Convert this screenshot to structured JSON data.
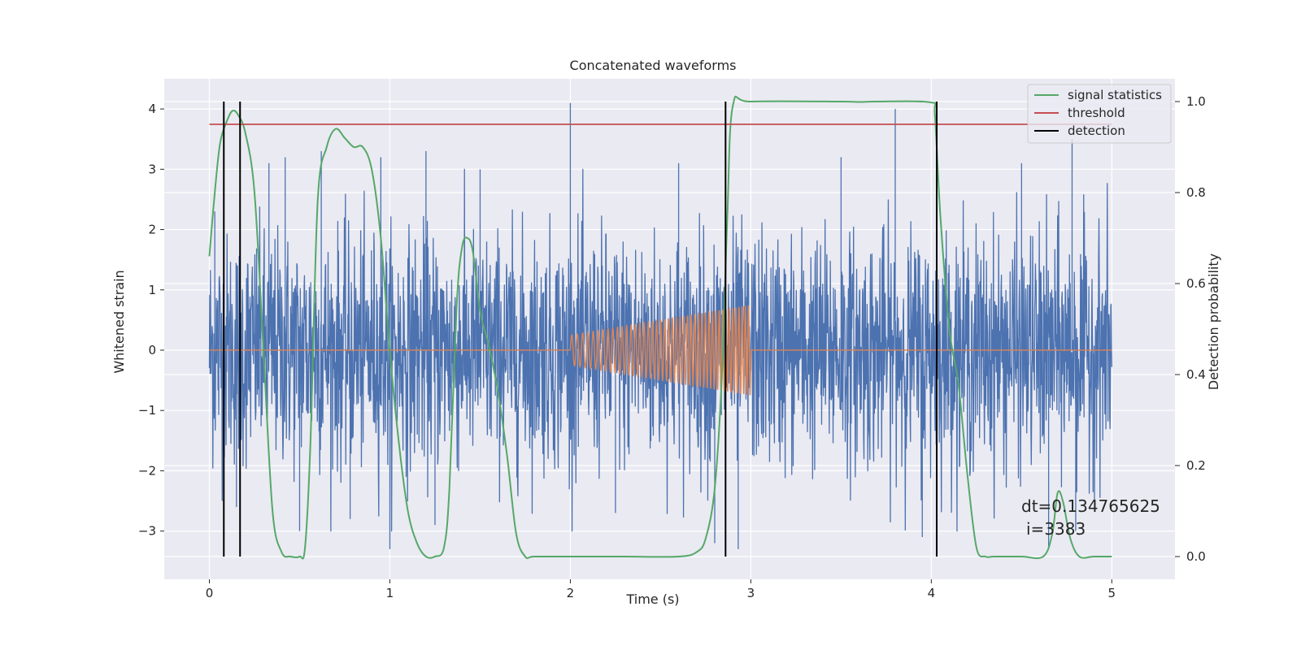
{
  "chart_data": {
    "type": "line",
    "title": "Concatenated waveforms",
    "xlabel": "Time (s)",
    "ylabel": "Whitened strain",
    "y2label": "Detection probability",
    "xlim": [
      -0.25,
      5.35
    ],
    "ylim": [
      -3.8,
      4.5
    ],
    "y2lim": [
      -0.05,
      1.05
    ],
    "x_ticks": [
      0,
      1,
      2,
      3,
      4,
      5
    ],
    "x_tick_labels": [
      "0",
      "1",
      "2",
      "3",
      "4",
      "5"
    ],
    "y_ticks": [
      -3,
      -2,
      -1,
      0,
      1,
      2,
      3,
      4
    ],
    "y_tick_labels": [
      "−3",
      "−2",
      "−1",
      "0",
      "1",
      "2",
      "3",
      "4"
    ],
    "y2_ticks": [
      0.0,
      0.2,
      0.4,
      0.6,
      0.8,
      1.0
    ],
    "y2_tick_labels": [
      "0.0",
      "0.2",
      "0.4",
      "0.6",
      "0.8",
      "1.0"
    ],
    "grid": true,
    "legend_position": "top-right",
    "legend": [
      "signal statistics",
      "threshold",
      "detection"
    ],
    "series": [
      {
        "name": "whitened strain",
        "axis": "left",
        "color": "#4c72b0",
        "kind": "noise",
        "x_range": [
          0,
          5
        ],
        "sigma": 1.0,
        "typical_envelope": [
          -2.0,
          2.0
        ],
        "spikes": [
          {
            "x": 0.03,
            "y": 2.3
          },
          {
            "x": 0.15,
            "y": -2.6
          },
          {
            "x": 0.33,
            "y": 3.1
          },
          {
            "x": 0.42,
            "y": 3.2
          },
          {
            "x": 0.5,
            "y": -3.0
          },
          {
            "x": 0.62,
            "y": 3.3
          },
          {
            "x": 0.78,
            "y": -2.8
          },
          {
            "x": 0.95,
            "y": 3.2
          },
          {
            "x": 1.0,
            "y": -3.3
          },
          {
            "x": 1.2,
            "y": 3.3
          },
          {
            "x": 1.25,
            "y": -2.9
          },
          {
            "x": 1.5,
            "y": 3.0
          },
          {
            "x": 2.0,
            "y": 4.1
          },
          {
            "x": 2.25,
            "y": -2.7
          },
          {
            "x": 2.6,
            "y": 3.1
          },
          {
            "x": 2.8,
            "y": -3.2
          },
          {
            "x": 2.93,
            "y": -3.3
          },
          {
            "x": 3.5,
            "y": 3.2
          },
          {
            "x": 3.8,
            "y": 4.0
          },
          {
            "x": 3.95,
            "y": -3.1
          },
          {
            "x": 4.5,
            "y": 3.1
          },
          {
            "x": 4.65,
            "y": -3.3
          },
          {
            "x": 4.78,
            "y": 3.5
          },
          {
            "x": 4.8,
            "y": -3.0
          }
        ]
      },
      {
        "name": "injected signal",
        "axis": "left",
        "color": "#dd8452",
        "kind": "chirp",
        "x_range": [
          0,
          5
        ],
        "chirp_start": 2.0,
        "chirp_end": 3.0,
        "amp_start": 0.25,
        "amp_end": 0.75,
        "freq_start": 32,
        "freq_end": 58
      },
      {
        "name": "signal statistics",
        "axis": "right",
        "color": "#55a868",
        "x": [
          0.0,
          0.03,
          0.06,
          0.1,
          0.13,
          0.16,
          0.2,
          0.25,
          0.3,
          0.35,
          0.4,
          0.45,
          0.5,
          0.53,
          0.56,
          0.6,
          0.65,
          0.7,
          0.75,
          0.8,
          0.85,
          0.9,
          0.95,
          1.0,
          1.05,
          1.1,
          1.15,
          1.2,
          1.25,
          1.3,
          1.33,
          1.37,
          1.4,
          1.43,
          1.46,
          1.5,
          1.55,
          1.6,
          1.65,
          1.7,
          1.75,
          1.8,
          2.0,
          2.3,
          2.6,
          2.7,
          2.75,
          2.8,
          2.84,
          2.87,
          2.9,
          3.0,
          3.5,
          3.6,
          3.7,
          4.0,
          4.02,
          4.05,
          4.1,
          4.15,
          4.2,
          4.25,
          4.3,
          4.35,
          4.5,
          4.62,
          4.67,
          4.7,
          4.73,
          4.77,
          4.82,
          4.9,
          5.0
        ],
        "values": [
          0.66,
          0.8,
          0.91,
          0.96,
          0.98,
          0.97,
          0.93,
          0.8,
          0.45,
          0.1,
          0.01,
          0.0,
          0.0,
          0.02,
          0.25,
          0.78,
          0.9,
          0.94,
          0.92,
          0.9,
          0.9,
          0.85,
          0.7,
          0.45,
          0.25,
          0.1,
          0.03,
          0.0,
          0.0,
          0.02,
          0.15,
          0.55,
          0.68,
          0.7,
          0.67,
          0.54,
          0.46,
          0.36,
          0.22,
          0.05,
          0.0,
          0.0,
          0.0,
          0.0,
          0.0,
          0.01,
          0.04,
          0.15,
          0.4,
          0.75,
          0.99,
          1.0,
          1.0,
          0.999,
          1.0,
          0.998,
          0.97,
          0.75,
          0.5,
          0.38,
          0.18,
          0.02,
          0.0,
          0.0,
          0.0,
          0.0,
          0.05,
          0.14,
          0.12,
          0.04,
          0.0,
          0.0,
          0.0
        ]
      },
      {
        "name": "threshold",
        "axis": "right",
        "color": "#c44e52",
        "x": [
          0,
          5
        ],
        "values": [
          0.95,
          0.95
        ]
      }
    ],
    "detections": [
      0.08,
      0.17,
      2.86,
      4.03
    ],
    "detection_color": "#000000",
    "detection_range": [
      0.0,
      1.0
    ],
    "annotation": {
      "line1": "dt=0.134765625",
      "line2": "i=3383",
      "x": 4.5,
      "y": -2.6
    }
  }
}
